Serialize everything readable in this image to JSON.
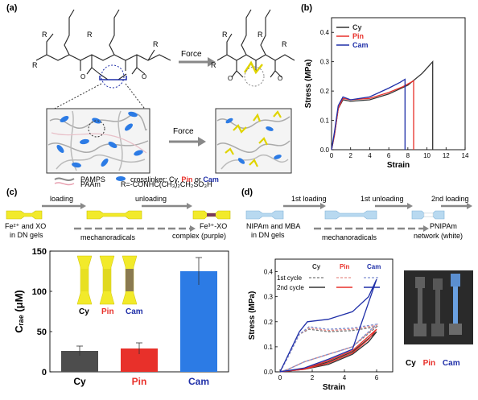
{
  "panel_labels": {
    "a": "(a)",
    "b": "(b)",
    "c": "(c)",
    "d": "(d)"
  },
  "colors": {
    "cy": "#333333",
    "pin": "#e8302a",
    "cam": "#1f2fa8",
    "yellow": "#f2ea2a",
    "blue_bar": "#2c7be5"
  },
  "panel_a": {
    "force_top": "Force",
    "force_mid": "Force",
    "r_top_left_1": "R",
    "r_top_left_2": "R",
    "r_top_left_3": "R",
    "r_top_left_4": "R",
    "r_top_right_1": "R",
    "r_top_right_2": "R",
    "r_top_right_3": "R",
    "r_top_right_4": "R",
    "o_1": "O",
    "o_2": "O",
    "o_3": "O",
    "o_4": "O",
    "legend_pamps": "PAMPS",
    "legend_crosslinker_prefix": "crosslinker: Cy, ",
    "legend_pin": "Pin",
    "legend_or": " or ",
    "legend_cam": "Cam",
    "legend_paam": "PAAm",
    "legend_r": "R=-CONHC(CH₃)₂CH₂SO₃H"
  },
  "panel_c": {
    "loading": "loading",
    "unloading": "unloading",
    "left_caption_1": "Fe²⁺ and XO",
    "left_caption_2": "in DN gels",
    "mid_caption": "mechanoradicals",
    "right_caption_1": "Fe³⁺-XO",
    "right_caption_2": "complex (purple)",
    "photo_labels": [
      "Cy",
      "Pin",
      "Cam"
    ]
  },
  "panel_d": {
    "first_loading": "1st loading",
    "first_unloading": "1st unloading",
    "second_loading": "2nd loading",
    "left_caption_1": "NIPAm and MBA",
    "left_caption_2": "in DN gels",
    "mid_caption": "mechanoradicals",
    "right_caption_1": "PNIPAm",
    "right_caption_2": "network (white)",
    "legend_headers": [
      "Cy",
      "Pin",
      "Cam"
    ],
    "legend_row1": "1st cycle",
    "legend_row2": "2nd cycle",
    "photo_labels": [
      "Cy",
      "Pin",
      "Cam"
    ]
  },
  "chart_data": [
    {
      "id": "b",
      "type": "line",
      "xlabel": "Strain",
      "ylabel": "Stress (MPa)",
      "xlim": [
        0,
        14
      ],
      "ylim": [
        0,
        0.45
      ],
      "xticks": [
        0,
        2,
        4,
        6,
        8,
        10,
        12,
        14
      ],
      "yticks": [
        0.0,
        0.1,
        0.2,
        0.3,
        0.4
      ],
      "legend_placement": "top-left",
      "series": [
        {
          "name": "Cy",
          "color": "#333333",
          "x": [
            0,
            0.3,
            0.7,
            1.2,
            2,
            4,
            6,
            8,
            9.5,
            10.6,
            10.6
          ],
          "y": [
            0,
            0.05,
            0.14,
            0.17,
            0.165,
            0.17,
            0.19,
            0.22,
            0.26,
            0.3,
            0.0
          ]
        },
        {
          "name": "Pin",
          "color": "#e8302a",
          "x": [
            0,
            0.3,
            0.7,
            1.2,
            2,
            4,
            6,
            7.5,
            8.6,
            8.6
          ],
          "y": [
            0,
            0.05,
            0.14,
            0.175,
            0.17,
            0.175,
            0.195,
            0.215,
            0.235,
            0.0
          ]
        },
        {
          "name": "Cam",
          "color": "#1f2fa8",
          "x": [
            0,
            0.3,
            0.7,
            1.2,
            2,
            4,
            6,
            7.2,
            7.7,
            7.7
          ],
          "y": [
            0,
            0.06,
            0.15,
            0.18,
            0.17,
            0.18,
            0.21,
            0.23,
            0.24,
            0.0
          ]
        }
      ]
    },
    {
      "id": "c",
      "type": "bar",
      "xlabel": "",
      "ylabel": "Cᵣₐₑ (μM)",
      "ylim": [
        0,
        150
      ],
      "yticks": [
        0,
        50,
        100,
        150
      ],
      "categories": [
        "Cy",
        "Pin",
        "Cam"
      ],
      "values": [
        26,
        29,
        125
      ],
      "errors": [
        6,
        7,
        17
      ],
      "colors": [
        "#4d4d4d",
        "#e8302a",
        "#2c7be5"
      ]
    },
    {
      "id": "d",
      "type": "line",
      "xlabel": "Strain",
      "ylabel": "Stress (MPa)",
      "xlim": [
        -0.3,
        7
      ],
      "ylim": [
        0,
        0.45
      ],
      "xticks": [
        0,
        2,
        4,
        6
      ],
      "yticks": [
        0.0,
        0.1,
        0.2,
        0.3,
        0.4
      ],
      "series": [
        {
          "name": "Cy 1st",
          "color": "#777777",
          "dash": true,
          "x": [
            0,
            0.5,
            1.2,
            1.8,
            3,
            4.5,
            6,
            6,
            4.5,
            3,
            1.5,
            0.5,
            0
          ],
          "y": [
            0,
            0.06,
            0.15,
            0.17,
            0.16,
            0.165,
            0.18,
            0.18,
            0.1,
            0.07,
            0.04,
            0.01,
            0
          ]
        },
        {
          "name": "Pin 1st",
          "color": "#e88f8a",
          "dash": true,
          "x": [
            0,
            0.5,
            1.2,
            1.8,
            3,
            4.5,
            6,
            6,
            4.5,
            3,
            1.5,
            0.5,
            0
          ],
          "y": [
            0,
            0.06,
            0.15,
            0.175,
            0.165,
            0.17,
            0.185,
            0.185,
            0.1,
            0.07,
            0.04,
            0.01,
            0
          ]
        },
        {
          "name": "Cam 1st",
          "color": "#8090d0",
          "dash": true,
          "x": [
            0,
            0.5,
            1.2,
            1.8,
            3,
            4.5,
            6,
            6,
            4.5,
            3,
            1.5,
            0.5,
            0
          ],
          "y": [
            0,
            0.06,
            0.15,
            0.18,
            0.17,
            0.175,
            0.19,
            0.19,
            0.1,
            0.07,
            0.04,
            0.01,
            0
          ]
        },
        {
          "name": "Cy 2nd",
          "color": "#333333",
          "x": [
            0,
            1.5,
            3,
            4.5,
            5.5,
            6,
            6,
            4.5,
            3,
            1.5,
            0
          ],
          "y": [
            0,
            0.01,
            0.03,
            0.07,
            0.12,
            0.16,
            0.16,
            0.08,
            0.04,
            0.01,
            0
          ]
        },
        {
          "name": "Pin 2nd",
          "color": "#e8302a",
          "x": [
            0,
            1.5,
            3,
            4.5,
            5.5,
            6,
            6,
            4.5,
            3,
            1.5,
            0
          ],
          "y": [
            0,
            0.01,
            0.035,
            0.075,
            0.13,
            0.17,
            0.17,
            0.085,
            0.045,
            0.012,
            0
          ]
        },
        {
          "name": "Cam 2nd",
          "color": "#1f2fa8",
          "x": [
            0,
            0.6,
            1.2,
            1.7,
            3,
            4.5,
            5.5,
            6,
            6,
            4.5,
            3,
            1.5,
            0
          ],
          "y": [
            0,
            0.08,
            0.16,
            0.2,
            0.21,
            0.24,
            0.3,
            0.37,
            0.37,
            0.09,
            0.05,
            0.015,
            0
          ]
        }
      ]
    }
  ]
}
